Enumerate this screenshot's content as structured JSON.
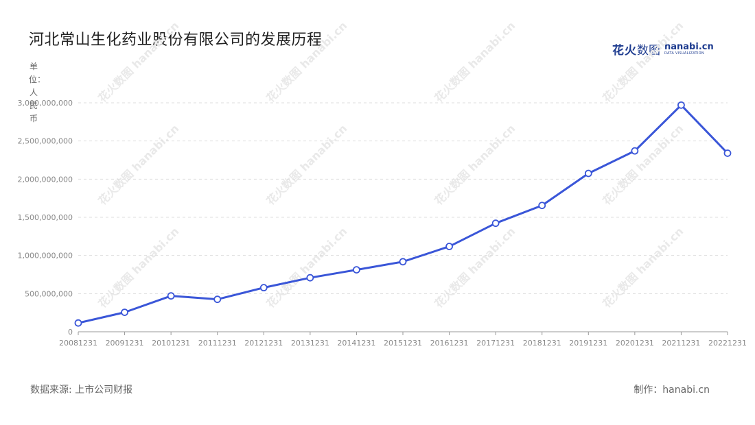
{
  "title": "河北常山生化药业股份有限公司的发展历程",
  "unit_label": "单位：人民币",
  "logo": {
    "cn_bold": "花火",
    "cn": "数图",
    "domain": "hanabi.cn",
    "tagline": "DATA VISUALIZATION"
  },
  "source": "数据来源: 上市公司财报",
  "maker": "制作：hanabi.cn",
  "watermark": "花火数图 hanabi.cn",
  "colors": {
    "line": "#3a56d8",
    "grid": "#dddddd",
    "axis": "#999999"
  },
  "chart_data": {
    "type": "line",
    "title": "河北常山生化药业股份有限公司的发展历程",
    "ylabel": "单位：人民币",
    "categories": [
      "20081231",
      "20091231",
      "20101231",
      "20111231",
      "20121231",
      "20131231",
      "20141231",
      "20151231",
      "20161231",
      "20171231",
      "20181231",
      "20191231",
      "20201231",
      "20211231",
      "20221231"
    ],
    "values": [
      115000000,
      255000000,
      470000000,
      425000000,
      578000000,
      708000000,
      812000000,
      918000000,
      1118000000,
      1422000000,
      1655000000,
      2075000000,
      2370000000,
      2970000000,
      2340000000
    ],
    "ylim": [
      0,
      3000000000
    ],
    "yticks": [
      0,
      500000000,
      1000000000,
      1500000000,
      2000000000,
      2500000000,
      3000000000
    ],
    "ytick_labels": [
      "0",
      "500,000,000",
      "1,000,000,000",
      "1,500,000,000",
      "2,000,000,000",
      "2,500,000,000",
      "3,000,000,000"
    ],
    "grid": true,
    "legend": "none"
  }
}
